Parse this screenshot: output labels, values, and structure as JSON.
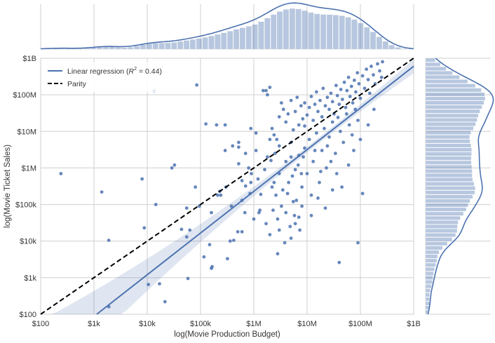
{
  "chart_data": {
    "type": "scatter",
    "xlabel": "log(Movie Production Budget)",
    "ylabel": "log(Movie Ticket Sales)",
    "x_scale": "log",
    "y_scale": "log",
    "xlim": [
      100,
      1000000000
    ],
    "ylim": [
      100,
      1000000000
    ],
    "x_ticks": [
      {
        "value": 100,
        "label": "$100"
      },
      {
        "value": 1000,
        "label": "$1k"
      },
      {
        "value": 10000,
        "label": "$10k"
      },
      {
        "value": 100000,
        "label": "$100k"
      },
      {
        "value": 1000000,
        "label": "$1M"
      },
      {
        "value": 10000000,
        "label": "$10M"
      },
      {
        "value": 100000000,
        "label": "$100M"
      },
      {
        "value": 1000000000,
        "label": "$1B"
      }
    ],
    "y_ticks": [
      {
        "value": 100,
        "label": "$100"
      },
      {
        "value": 1000,
        "label": "$1k"
      },
      {
        "value": 10000,
        "label": "$10k"
      },
      {
        "value": 100000,
        "label": "$100k"
      },
      {
        "value": 1000000,
        "label": "$1M"
      },
      {
        "value": 10000000,
        "label": "$10M"
      },
      {
        "value": 100000000,
        "label": "$100M"
      },
      {
        "value": 1000000000,
        "label": "$1B"
      }
    ],
    "grid": true,
    "legend_position": "top-left",
    "legend": [
      {
        "label": "Linear regression ($R^2$ = 0.44)",
        "display_prefix": "Linear regression (",
        "display_r": "R",
        "display_sup": "2",
        "display_suffix": " = 0.44)",
        "style": "solid",
        "color": "#4c72b0"
      },
      {
        "label": "Parity",
        "style": "dashed",
        "color": "#000000"
      }
    ],
    "regression": {
      "r_squared": 0.44,
      "slope": 1.14,
      "intercept": -1.48
    },
    "parity": {
      "slope": 1,
      "intercept": 0
    },
    "scatter_points": [
      [
        240,
        700000
      ],
      [
        1400,
        220000
      ],
      [
        1900,
        10500
      ],
      [
        1900,
        160
      ],
      [
        8000,
        500000
      ],
      [
        8800,
        23000
      ],
      [
        10500,
        650
      ],
      [
        13500,
        130000000
      ],
      [
        14500,
        100000
      ],
      [
        17000,
        680
      ],
      [
        21500,
        220
      ],
      [
        29000,
        1000000
      ],
      [
        32500,
        1200000
      ],
      [
        44000,
        21000
      ],
      [
        55000,
        13000
      ],
      [
        55000,
        80000
      ],
      [
        58000,
        950
      ],
      [
        63000,
        20000
      ],
      [
        80000,
        300000
      ],
      [
        85000,
        185000000
      ],
      [
        95000,
        90000
      ],
      [
        116000,
        3700
      ],
      [
        126000,
        16000000
      ],
      [
        148000,
        8000
      ],
      [
        160000,
        1800
      ],
      [
        165000,
        2000
      ],
      [
        200000,
        15000000
      ],
      [
        210000,
        180000
      ],
      [
        240000,
        180000
      ],
      [
        290000,
        15000000
      ],
      [
        320000,
        3300
      ],
      [
        360000,
        10000
      ],
      [
        420000,
        10500
      ],
      [
        500000,
        18000
      ],
      [
        160000,
        60000
      ],
      [
        230000,
        230000
      ],
      [
        380000,
        90000
      ],
      [
        600000,
        130000
      ],
      [
        520000,
        1300000
      ],
      [
        300000,
        300000
      ],
      [
        680000,
        60000
      ],
      [
        290000,
        3000000
      ],
      [
        400000,
        4000000
      ],
      [
        520000,
        3700000
      ],
      [
        600000,
        18000
      ],
      [
        520000,
        5000000
      ],
      [
        600000,
        450000
      ],
      [
        700000,
        2500000
      ],
      [
        700000,
        320000
      ],
      [
        800000,
        1000000
      ],
      [
        1000000,
        40000
      ],
      [
        850000,
        200000
      ],
      [
        880000,
        12000000
      ],
      [
        880000,
        400000
      ],
      [
        900000,
        700000
      ],
      [
        1100000,
        9000000
      ],
      [
        1100000,
        3000000
      ],
      [
        1250000,
        60000
      ],
      [
        1300000,
        70000
      ],
      [
        1350000,
        190000
      ],
      [
        1500000,
        130000000
      ],
      [
        1700000,
        130000000
      ],
      [
        2100000,
        1600000
      ],
      [
        2800000,
        4500
      ],
      [
        1800000,
        100000000
      ],
      [
        2000000,
        160000000
      ],
      [
        2200000,
        12000000
      ],
      [
        2400000,
        8000000
      ],
      [
        2700000,
        6000000
      ],
      [
        3000000,
        25000000
      ],
      [
        3300000,
        60000000
      ],
      [
        3600000,
        40000000
      ],
      [
        4000000,
        18000000
      ],
      [
        4400000,
        30000000
      ],
      [
        5000000,
        70000000
      ],
      [
        5500000,
        11000000
      ],
      [
        6000000,
        35000000
      ],
      [
        6500000,
        85000000
      ],
      [
        7000000,
        15000000
      ],
      [
        7700000,
        50000000
      ],
      [
        8300000,
        22000000
      ],
      [
        9000000,
        60000000
      ],
      [
        10000000,
        28000000
      ],
      [
        11000000,
        45000000
      ],
      [
        12000000,
        90000000
      ],
      [
        13000000,
        20000000
      ],
      [
        14000000,
        55000000
      ],
      [
        15000000,
        120000000
      ],
      [
        16000000,
        35000000
      ],
      [
        17500000,
        70000000
      ],
      [
        19000000,
        25000000
      ],
      [
        20000000,
        150000000
      ],
      [
        22000000,
        50000000
      ],
      [
        24000000,
        85000000
      ],
      [
        26000000,
        40000000
      ],
      [
        28000000,
        110000000
      ],
      [
        30000000,
        65000000
      ],
      [
        32000000,
        30000000
      ],
      [
        35000000,
        180000000
      ],
      [
        37000000,
        95000000
      ],
      [
        40000000,
        55000000
      ],
      [
        43000000,
        140000000
      ],
      [
        46000000,
        75000000
      ],
      [
        50000000,
        220000000
      ],
      [
        53000000,
        45000000
      ],
      [
        56000000,
        130000000
      ],
      [
        60000000,
        300000000
      ],
      [
        64000000,
        90000000
      ],
      [
        68000000,
        170000000
      ],
      [
        72000000,
        60000000
      ],
      [
        77000000,
        250000000
      ],
      [
        82000000,
        120000000
      ],
      [
        88000000,
        400000000
      ],
      [
        94000000,
        200000000
      ],
      [
        100000000,
        80000000
      ],
      [
        110000000,
        330000000
      ],
      [
        120000000,
        150000000
      ],
      [
        130000000,
        500000000
      ],
      [
        140000000,
        260000000
      ],
      [
        150000000,
        110000000
      ],
      [
        160000000,
        600000000
      ],
      [
        175000000,
        350000000
      ],
      [
        190000000,
        200000000
      ],
      [
        210000000,
        700000000
      ],
      [
        230000000,
        450000000
      ],
      [
        250000000,
        300000000
      ],
      [
        260000000,
        800000000
      ],
      [
        2500000,
        2500000
      ],
      [
        3000000,
        700000
      ],
      [
        3500000,
        250000
      ],
      [
        4000000,
        1500000
      ],
      [
        4500000,
        400000
      ],
      [
        5000000,
        5000000
      ],
      [
        5500000,
        120000
      ],
      [
        6000000,
        900000
      ],
      [
        7000000,
        2200000
      ],
      [
        8000000,
        300000
      ],
      [
        9000000,
        3500000
      ],
      [
        10000000,
        700000
      ],
      [
        11000000,
        6000000
      ],
      [
        12000000,
        180000
      ],
      [
        13000000,
        1500000
      ],
      [
        15000000,
        9000000
      ],
      [
        17000000,
        400000
      ],
      [
        19000000,
        3000000
      ],
      [
        21000000,
        12000000
      ],
      [
        23000000,
        1000000
      ],
      [
        26000000,
        7000000
      ],
      [
        30000000,
        18000000
      ],
      [
        34000000,
        2500000
      ],
      [
        38000000,
        24000000
      ],
      [
        42000000,
        10000000
      ],
      [
        48000000,
        5000000
      ],
      [
        55000000,
        30000000
      ],
      [
        62000000,
        15000000
      ],
      [
        70000000,
        8000000
      ],
      [
        80000000,
        40000000
      ],
      [
        90000000,
        20000000
      ],
      [
        4000000,
        60000
      ],
      [
        6000000,
        30000
      ],
      [
        8000000,
        90000
      ],
      [
        12000000,
        50000
      ],
      [
        16000000,
        150000
      ],
      [
        22000000,
        80000
      ],
      [
        30000000,
        250000
      ],
      [
        40000000,
        2600
      ],
      [
        90000000,
        9000
      ],
      [
        110000000,
        200000
      ],
      [
        3000000,
        20000
      ],
      [
        5000000,
        12000
      ],
      [
        7000000,
        45000
      ],
      [
        2200000,
        300000
      ],
      [
        2600000,
        180000
      ],
      [
        1200000,
        500000
      ],
      [
        1600000,
        900000
      ],
      [
        1800000,
        2000000
      ],
      [
        2000000,
        6000000
      ],
      [
        2400000,
        400000
      ],
      [
        3000000,
        4000000
      ],
      [
        5000000,
        2000000
      ],
      [
        9000000,
        14000000
      ],
      [
        14000000,
        3000000
      ],
      [
        18000000,
        800000
      ],
      [
        24000000,
        4000000
      ],
      [
        28000000,
        1500000
      ],
      [
        36000000,
        700000
      ],
      [
        45000000,
        300000
      ],
      [
        60000000,
        1200000
      ],
      [
        75000000,
        3000000
      ],
      [
        100000000,
        6000000
      ],
      [
        140000000,
        15000000
      ],
      [
        180000000,
        40000000
      ],
      [
        1700000,
        30000
      ],
      [
        2000000,
        15000
      ],
      [
        2300000,
        70000
      ],
      [
        2800000,
        40000
      ],
      [
        3300000,
        90000
      ],
      [
        3800000,
        9000
      ],
      [
        4300000,
        200000
      ],
      [
        4800000,
        25000
      ],
      [
        5300000,
        600000
      ],
      [
        5800000,
        50000
      ],
      [
        6300000,
        130000
      ],
      [
        6800000,
        1200000
      ],
      [
        7300000,
        20000
      ],
      [
        7800000,
        700000
      ],
      [
        8500000,
        2000000
      ]
    ]
  }
}
